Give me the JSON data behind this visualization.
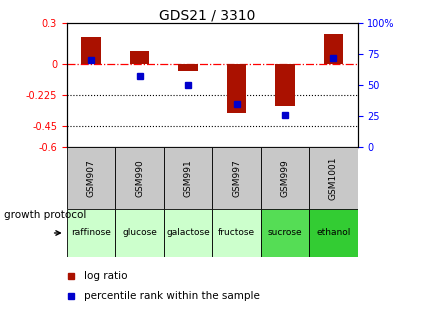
{
  "title": "GDS21 / 3310",
  "samples": [
    "GSM907",
    "GSM990",
    "GSM991",
    "GSM997",
    "GSM999",
    "GSM1001"
  ],
  "protocols": [
    "raffinose",
    "glucose",
    "galactose",
    "fructose",
    "sucrose",
    "ethanol"
  ],
  "protocol_colors": [
    "#ccffcc",
    "#ccffcc",
    "#ccffcc",
    "#ccffcc",
    "#55dd55",
    "#33cc33"
  ],
  "log_ratios": [
    0.2,
    0.1,
    -0.05,
    -0.35,
    -0.3,
    0.22
  ],
  "percentile_ranks": [
    70,
    57,
    50,
    35,
    26,
    72
  ],
  "bar_color": "#aa1100",
  "dot_color": "#0000cc",
  "ylim_left": [
    -0.6,
    0.3
  ],
  "ylim_right": [
    0,
    100
  ],
  "yticks_left": [
    0.3,
    0.0,
    -0.225,
    -0.45,
    -0.6
  ],
  "yticks_left_labels": [
    "0.3",
    "0",
    "-0.225",
    "-0.45",
    "-0.6"
  ],
  "yticks_right": [
    100,
    75,
    50,
    25,
    0
  ],
  "yticks_right_labels": [
    "100%",
    "75",
    "50",
    "25",
    "0"
  ],
  "dotted_lines": [
    -0.225,
    -0.45
  ],
  "legend_labels": [
    "log ratio",
    "percentile rank within the sample"
  ],
  "growth_protocol_label": "growth protocol",
  "bar_width": 0.4,
  "label_gray": "#c8c8c8",
  "title_fontsize": 10,
  "tick_fontsize": 7,
  "sample_fontsize": 6.5,
  "proto_fontsize": 6.5,
  "legend_fontsize": 7.5
}
